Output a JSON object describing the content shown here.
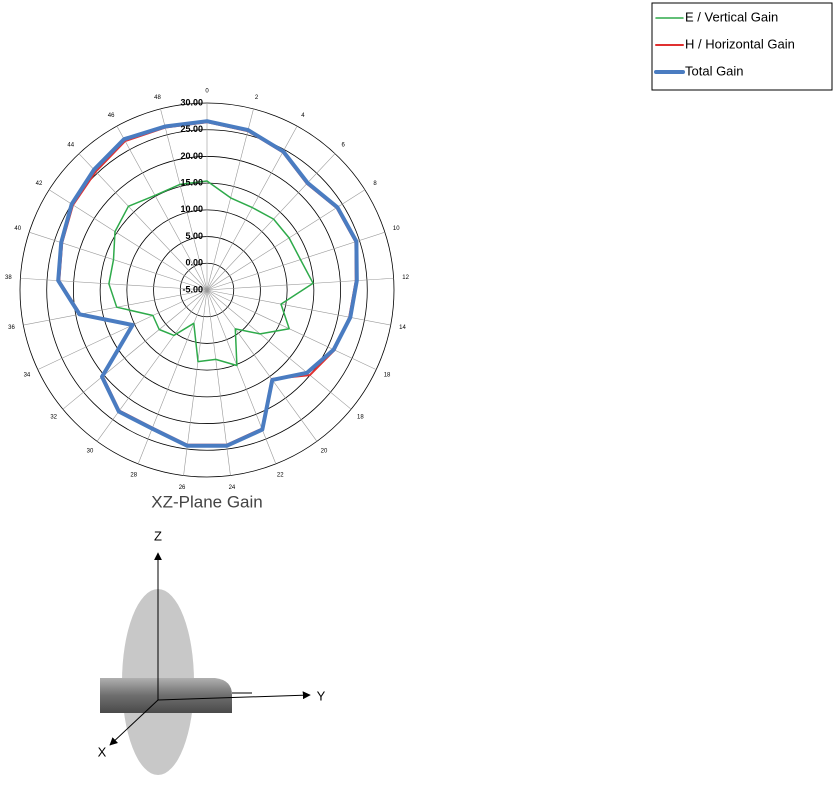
{
  "chart_data": {
    "type": "radar",
    "title": "XZ-Plane Gain",
    "categories": [
      "0",
      "2",
      "4",
      "6",
      "8",
      "10",
      "12",
      "14",
      "18",
      "18",
      "20",
      "22",
      "24",
      "26",
      "28",
      "30",
      "32",
      "34",
      "36",
      "38",
      "40",
      "42",
      "44",
      "46",
      "48"
    ],
    "series": [
      {
        "name": "E / Vertical Gain",
        "color": "#2eaa4a",
        "width": 1.5,
        "values": [
          15.4,
          12.8,
          12.6,
          13.2,
          13.2,
          13.4,
          14.9,
          9.1,
          12.0,
          7.9,
          4.0,
          10.2,
          8.1,
          8.5,
          1.7,
          5.5,
          6.6,
          6.2,
          12.2,
          13.4,
          13.4,
          15.4,
          16.5,
          15.2,
          15.4
        ]
      },
      {
        "name": "H / Horizontal Gain",
        "color": "#e03030",
        "width": 2,
        "values": [
          26.4,
          25.7,
          24.4,
          22.3,
          23.7,
          24.2,
          22.9,
          22.1,
          21.4,
          20.0,
          15.6,
          22.9,
          24.2,
          24.2,
          22.7,
          22.9,
          20.3,
          10.2,
          19.1,
          22.7,
          23.5,
          24.7,
          25.4,
          26.8,
          26.4
        ]
      },
      {
        "name": "Total Gain",
        "color": "#4a7cc1",
        "width": 4,
        "values": [
          26.6,
          25.9,
          24.6,
          22.5,
          23.9,
          24.4,
          23.1,
          22.3,
          21.2,
          19.3,
          15.8,
          23.1,
          24.4,
          24.4,
          22.9,
          23.1,
          20.5,
          10.4,
          19.3,
          22.9,
          23.7,
          25.0,
          25.9,
          27.2,
          26.6
        ]
      }
    ],
    "ylim": [
      -5,
      30
    ],
    "yticks": [
      {
        "value": -5,
        "label": "-5.00"
      },
      {
        "value": 0,
        "label": "0.00"
      },
      {
        "value": 5,
        "label": "5.00"
      },
      {
        "value": 10,
        "label": "10.00"
      },
      {
        "value": 15,
        "label": "15.00"
      },
      {
        "value": 20,
        "label": "20.00"
      },
      {
        "value": 25,
        "label": "25.00"
      },
      {
        "value": 30,
        "label": "30.00"
      }
    ],
    "grid": true,
    "legend": "top-right"
  },
  "diagram": {
    "axes": [
      "Z",
      "Y",
      "X"
    ]
  }
}
